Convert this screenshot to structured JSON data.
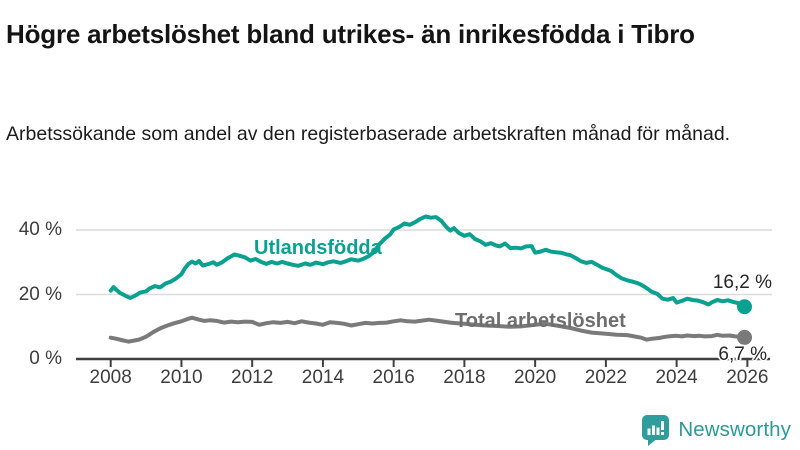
{
  "header": {
    "title": "Högre arbetslöshet bland utrikes- än inrikesfödda i Tibro",
    "subtitle": "Arbetssökande som andel av den registerbaserade arbetskraften månad för månad."
  },
  "chart_data": {
    "type": "line",
    "title": "Högre arbetslöshet bland utrikes- än inrikesfödda i Tibro",
    "xlabel": "",
    "ylabel": "",
    "x_ticks": [
      2008,
      2010,
      2012,
      2014,
      2016,
      2018,
      2020,
      2022,
      2024,
      2026
    ],
    "y_ticks": [
      {
        "value": 0,
        "label": "0 %"
      },
      {
        "value": 20,
        "label": "20 %"
      },
      {
        "value": 40,
        "label": "40 %"
      }
    ],
    "gridlines": [
      20,
      40
    ],
    "xlim": [
      2008,
      2026.6
    ],
    "ylim": [
      0,
      48
    ],
    "legend_position": "inline-labels",
    "grid": "horizontal-only",
    "colors": {
      "axis": "#3f3f3f",
      "gridline": "#dcdcdc",
      "tick_label": "#3d3d3d"
    },
    "series": [
      {
        "name": "Utlandsfödda",
        "color": "#0aa191",
        "end_label": "16,2 %",
        "end_value": 16.2,
        "points": [
          [
            2008.0,
            21.2
          ],
          [
            2008.08,
            22.3
          ],
          [
            2008.25,
            20.6
          ],
          [
            2008.42,
            19.6
          ],
          [
            2008.55,
            18.9
          ],
          [
            2008.7,
            19.7
          ],
          [
            2008.83,
            20.6
          ],
          [
            2009.0,
            21.0
          ],
          [
            2009.1,
            21.9
          ],
          [
            2009.25,
            22.6
          ],
          [
            2009.4,
            22.2
          ],
          [
            2009.55,
            23.4
          ],
          [
            2009.7,
            24.0
          ],
          [
            2009.85,
            25.0
          ],
          [
            2010.0,
            26.3
          ],
          [
            2010.1,
            28.2
          ],
          [
            2010.2,
            29.5
          ],
          [
            2010.3,
            30.2
          ],
          [
            2010.4,
            29.6
          ],
          [
            2010.5,
            30.4
          ],
          [
            2010.6,
            29.0
          ],
          [
            2010.75,
            29.4
          ],
          [
            2010.9,
            30.0
          ],
          [
            2011.0,
            29.2
          ],
          [
            2011.15,
            30.0
          ],
          [
            2011.3,
            31.2
          ],
          [
            2011.5,
            32.4
          ],
          [
            2011.65,
            32.0
          ],
          [
            2011.8,
            31.5
          ],
          [
            2011.95,
            30.5
          ],
          [
            2012.1,
            31.0
          ],
          [
            2012.25,
            30.1
          ],
          [
            2012.4,
            29.5
          ],
          [
            2012.55,
            30.1
          ],
          [
            2012.7,
            29.6
          ],
          [
            2012.85,
            30.1
          ],
          [
            2013.0,
            29.6
          ],
          [
            2013.15,
            29.2
          ],
          [
            2013.3,
            28.9
          ],
          [
            2013.5,
            29.6
          ],
          [
            2013.65,
            29.2
          ],
          [
            2013.8,
            29.9
          ],
          [
            2014.0,
            29.4
          ],
          [
            2014.15,
            30.0
          ],
          [
            2014.3,
            30.3
          ],
          [
            2014.5,
            29.8
          ],
          [
            2014.65,
            30.3
          ],
          [
            2014.8,
            30.9
          ],
          [
            2015.0,
            30.5
          ],
          [
            2015.15,
            31.1
          ],
          [
            2015.3,
            31.9
          ],
          [
            2015.45,
            33.3
          ],
          [
            2015.6,
            35.6
          ],
          [
            2015.75,
            37.3
          ],
          [
            2015.9,
            38.6
          ],
          [
            2016.0,
            40.2
          ],
          [
            2016.15,
            40.9
          ],
          [
            2016.3,
            42.0
          ],
          [
            2016.45,
            41.6
          ],
          [
            2016.6,
            42.4
          ],
          [
            2016.75,
            43.4
          ],
          [
            2016.9,
            44.2
          ],
          [
            2017.05,
            43.8
          ],
          [
            2017.2,
            44.0
          ],
          [
            2017.35,
            42.8
          ],
          [
            2017.5,
            40.8
          ],
          [
            2017.6,
            39.8
          ],
          [
            2017.7,
            40.6
          ],
          [
            2017.85,
            39.0
          ],
          [
            2018.0,
            38.2
          ],
          [
            2018.15,
            38.7
          ],
          [
            2018.3,
            37.2
          ],
          [
            2018.45,
            36.5
          ],
          [
            2018.6,
            35.4
          ],
          [
            2018.75,
            35.9
          ],
          [
            2018.9,
            35.2
          ],
          [
            2019.0,
            34.9
          ],
          [
            2019.15,
            35.8
          ],
          [
            2019.3,
            34.4
          ],
          [
            2019.45,
            34.5
          ],
          [
            2019.6,
            34.3
          ],
          [
            2019.75,
            34.9
          ],
          [
            2019.9,
            35.0
          ],
          [
            2020.0,
            33.0
          ],
          [
            2020.15,
            33.3
          ],
          [
            2020.3,
            33.9
          ],
          [
            2020.45,
            33.3
          ],
          [
            2020.6,
            33.1
          ],
          [
            2020.75,
            32.9
          ],
          [
            2020.9,
            32.4
          ],
          [
            2021.0,
            32.2
          ],
          [
            2021.15,
            31.3
          ],
          [
            2021.3,
            30.3
          ],
          [
            2021.45,
            29.8
          ],
          [
            2021.6,
            30.1
          ],
          [
            2021.75,
            29.2
          ],
          [
            2021.9,
            28.3
          ],
          [
            2022.0,
            27.9
          ],
          [
            2022.15,
            27.3
          ],
          [
            2022.3,
            26.0
          ],
          [
            2022.45,
            25.0
          ],
          [
            2022.6,
            24.4
          ],
          [
            2022.75,
            24.0
          ],
          [
            2022.9,
            23.5
          ],
          [
            2023.0,
            23.0
          ],
          [
            2023.15,
            22.0
          ],
          [
            2023.3,
            20.8
          ],
          [
            2023.45,
            20.2
          ],
          [
            2023.6,
            18.7
          ],
          [
            2023.75,
            18.4
          ],
          [
            2023.9,
            18.9
          ],
          [
            2024.0,
            17.5
          ],
          [
            2024.15,
            18.0
          ],
          [
            2024.3,
            18.7
          ],
          [
            2024.45,
            18.3
          ],
          [
            2024.6,
            18.1
          ],
          [
            2024.75,
            17.6
          ],
          [
            2024.9,
            16.9
          ],
          [
            2025.0,
            17.6
          ],
          [
            2025.15,
            18.3
          ],
          [
            2025.3,
            17.9
          ],
          [
            2025.45,
            18.2
          ],
          [
            2025.6,
            17.7
          ],
          [
            2025.75,
            17.3
          ],
          [
            2025.92,
            16.2
          ]
        ]
      },
      {
        "name": "Total arbetslöshet",
        "color": "#7a7a7a",
        "end_label": "6,7 %",
        "end_value": 6.7,
        "points": [
          [
            2008.0,
            6.6
          ],
          [
            2008.15,
            6.3
          ],
          [
            2008.3,
            5.9
          ],
          [
            2008.5,
            5.4
          ],
          [
            2008.65,
            5.7
          ],
          [
            2008.8,
            6.0
          ],
          [
            2009.0,
            6.9
          ],
          [
            2009.2,
            8.3
          ],
          [
            2009.4,
            9.5
          ],
          [
            2009.6,
            10.4
          ],
          [
            2009.8,
            11.1
          ],
          [
            2010.0,
            11.7
          ],
          [
            2010.2,
            12.5
          ],
          [
            2010.3,
            12.8
          ],
          [
            2010.5,
            12.2
          ],
          [
            2010.65,
            11.8
          ],
          [
            2010.8,
            12.0
          ],
          [
            2011.0,
            11.8
          ],
          [
            2011.2,
            11.3
          ],
          [
            2011.4,
            11.6
          ],
          [
            2011.6,
            11.4
          ],
          [
            2011.8,
            11.6
          ],
          [
            2012.0,
            11.5
          ],
          [
            2012.2,
            10.6
          ],
          [
            2012.4,
            11.1
          ],
          [
            2012.6,
            11.4
          ],
          [
            2012.8,
            11.2
          ],
          [
            2013.0,
            11.5
          ],
          [
            2013.2,
            11.1
          ],
          [
            2013.4,
            11.7
          ],
          [
            2013.6,
            11.3
          ],
          [
            2013.8,
            11.0
          ],
          [
            2014.0,
            10.6
          ],
          [
            2014.2,
            11.4
          ],
          [
            2014.4,
            11.2
          ],
          [
            2014.6,
            10.9
          ],
          [
            2014.8,
            10.4
          ],
          [
            2015.0,
            10.8
          ],
          [
            2015.2,
            11.2
          ],
          [
            2015.4,
            11.0
          ],
          [
            2015.6,
            11.2
          ],
          [
            2015.8,
            11.3
          ],
          [
            2016.0,
            11.7
          ],
          [
            2016.2,
            12.0
          ],
          [
            2016.4,
            11.7
          ],
          [
            2016.6,
            11.6
          ],
          [
            2016.8,
            11.9
          ],
          [
            2017.0,
            12.2
          ],
          [
            2017.2,
            11.9
          ],
          [
            2017.4,
            11.6
          ],
          [
            2017.6,
            11.3
          ],
          [
            2017.8,
            11.1
          ],
          [
            2018.0,
            10.9
          ],
          [
            2018.3,
            10.6
          ],
          [
            2018.6,
            10.4
          ],
          [
            2019.0,
            10.2
          ],
          [
            2019.3,
            10.0
          ],
          [
            2019.6,
            10.1
          ],
          [
            2020.0,
            10.6
          ],
          [
            2020.3,
            10.9
          ],
          [
            2020.6,
            10.4
          ],
          [
            2021.0,
            9.6
          ],
          [
            2021.3,
            8.8
          ],
          [
            2021.6,
            8.2
          ],
          [
            2022.0,
            7.8
          ],
          [
            2022.3,
            7.5
          ],
          [
            2022.6,
            7.4
          ],
          [
            2022.8,
            7.0
          ],
          [
            2023.0,
            6.6
          ],
          [
            2023.15,
            6.0
          ],
          [
            2023.3,
            6.3
          ],
          [
            2023.5,
            6.5
          ],
          [
            2023.7,
            6.9
          ],
          [
            2023.85,
            7.1
          ],
          [
            2024.0,
            7.2
          ],
          [
            2024.15,
            7.0
          ],
          [
            2024.3,
            7.3
          ],
          [
            2024.5,
            7.1
          ],
          [
            2024.65,
            7.2
          ],
          [
            2024.8,
            7.0
          ],
          [
            2025.0,
            7.1
          ],
          [
            2025.15,
            7.5
          ],
          [
            2025.3,
            7.2
          ],
          [
            2025.5,
            7.3
          ],
          [
            2025.65,
            7.0
          ],
          [
            2025.8,
            6.9
          ],
          [
            2025.92,
            6.7
          ]
        ]
      }
    ]
  },
  "footer": {
    "brand": "Newsworthy",
    "brand_color": "#2a9a98"
  }
}
